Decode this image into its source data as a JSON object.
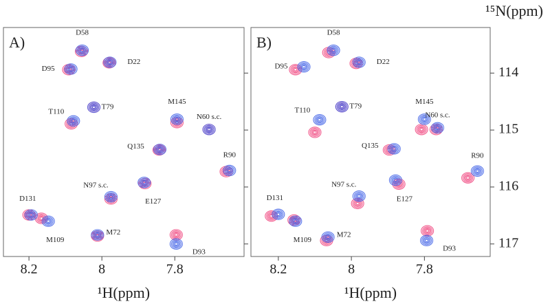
{
  "chart_data": [
    {
      "type": "scatter",
      "title": "A)",
      "xlabel": "¹H(ppm)",
      "xlim": [
        8.27,
        7.61
      ],
      "xticks": [
        8.2,
        8.0,
        7.8
      ],
      "ylim": [
        113.2,
        117.22
      ],
      "yticks": [
        114,
        115,
        116,
        117
      ],
      "point_labels": [
        "D58",
        "D22",
        "D95",
        "T79",
        "T110",
        "M145",
        "N60 s.c.",
        "Q135",
        "R90",
        "E127",
        "N97 s.c.",
        "D131",
        "M109",
        "M72",
        "D93"
      ],
      "series": [
        {
          "color": "#f0407a",
          "x": [
            8.056,
            7.98,
            8.091,
            8.022,
            8.084,
            7.794,
            7.706,
            7.843,
            7.659,
            7.882,
            7.975,
            8.2,
            8.166,
            8.012,
            7.796
          ],
          "y": [
            113.62,
            113.82,
            113.94,
            114.6,
            114.89,
            114.87,
            114.99,
            115.35,
            115.73,
            115.94,
            116.21,
            116.49,
            116.55,
            116.86,
            116.84
          ]
        },
        {
          "color": "#3c5ee6",
          "x": [
            8.054,
            7.978,
            8.085,
            8.022,
            8.078,
            7.794,
            7.706,
            7.841,
            7.65,
            7.884,
            7.975,
            8.194,
            8.147,
            8.012,
            7.796
          ],
          "y": [
            113.6,
            113.81,
            113.93,
            114.6,
            114.84,
            114.81,
            114.99,
            115.34,
            115.71,
            115.92,
            116.17,
            116.49,
            116.6,
            116.84,
            117.0
          ]
        }
      ]
    },
    {
      "type": "scatter",
      "title": "B)",
      "xlabel": "¹H(ppm)",
      "ylabel": "¹⁵N(ppm)",
      "xlim": [
        8.275,
        7.62
      ],
      "xticks": [
        8.2,
        8.0,
        7.8
      ],
      "ylim": [
        113.2,
        117.22
      ],
      "yticks": [
        114,
        115,
        116,
        117
      ],
      "point_labels": [
        "D58",
        "D22",
        "D95",
        "T79",
        "T110",
        "M145",
        "N60 s.c.",
        "Q135",
        "R90",
        "E127",
        "N97 s.c.",
        "D131",
        "M109",
        "M72",
        "D93"
      ],
      "series": [
        {
          "color": "#f0407a",
          "x": [
            8.062,
            7.987,
            8.153,
            8.026,
            8.1,
            7.808,
            7.768,
            7.896,
            7.681,
            7.87,
            7.983,
            8.219,
            8.157,
            8.068,
            7.792
          ],
          "y": [
            113.64,
            113.83,
            113.94,
            114.59,
            115.04,
            114.99,
            114.99,
            115.35,
            115.84,
            115.95,
            116.29,
            116.51,
            116.58,
            116.94,
            116.77
          ]
        },
        {
          "color": "#3c5ee6",
          "x": [
            8.049,
            7.979,
            8.13,
            8.026,
            8.087,
            7.8,
            7.764,
            7.883,
            7.655,
            7.879,
            7.979,
            8.2,
            8.153,
            8.064,
            7.794
          ],
          "y": [
            113.6,
            113.81,
            113.89,
            114.59,
            114.82,
            114.81,
            114.96,
            115.33,
            115.72,
            115.88,
            116.16,
            116.48,
            116.6,
            116.88,
            116.94
          ]
        }
      ]
    }
  ]
}
